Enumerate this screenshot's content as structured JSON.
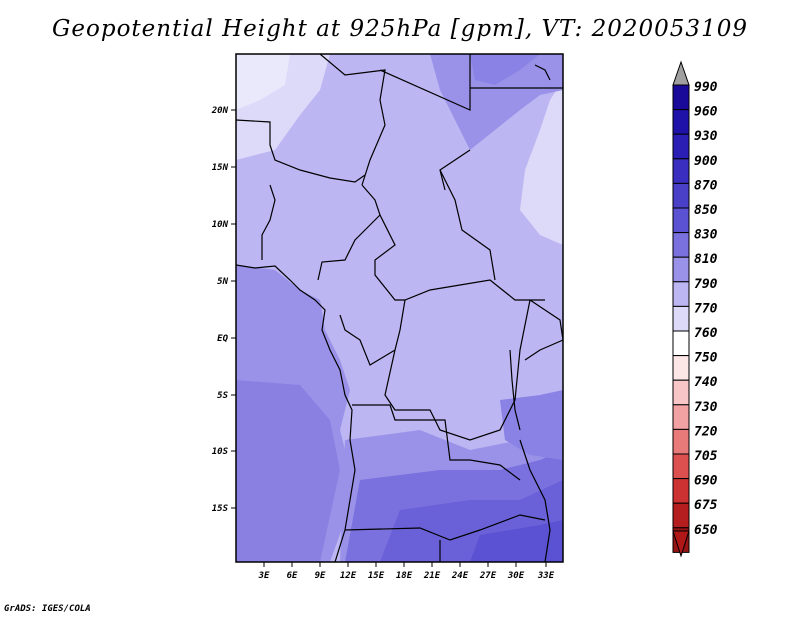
{
  "title": "Geopotential Height at 925hPa [gpm], VT: 2020053109",
  "credit": "GrADS: IGES/COLA",
  "map": {
    "lat_labels": [
      "20N",
      "15N",
      "10N",
      "5N",
      "EQ",
      "5S",
      "10S",
      "15S"
    ],
    "lon_labels": [
      "3E",
      "6E",
      "9E",
      "12E",
      "15E",
      "18E",
      "21E",
      "24E",
      "27E",
      "30E",
      "33E"
    ]
  },
  "colorbar": {
    "levels": [
      "990",
      "960",
      "930",
      "900",
      "870",
      "850",
      "830",
      "810",
      "790",
      "770",
      "760",
      "750",
      "740",
      "730",
      "720",
      "705",
      "690",
      "675",
      "650"
    ],
    "colors": [
      "#1a0a9a",
      "#1f12a8",
      "#2a1eb4",
      "#3a2ec0",
      "#4a40c8",
      "#5a52d2",
      "#7a70de",
      "#9a92e8",
      "#bcb6f2",
      "#dcdaf8",
      "#ffffff",
      "#fde6e6",
      "#f8c6c6",
      "#f2a2a2",
      "#e87a7a",
      "#dc5050",
      "#cc3232",
      "#b41e1e",
      "#961414"
    ],
    "top_arrow_color": "#a0a0a0",
    "bottom_arrow_color": "#b01818"
  }
}
